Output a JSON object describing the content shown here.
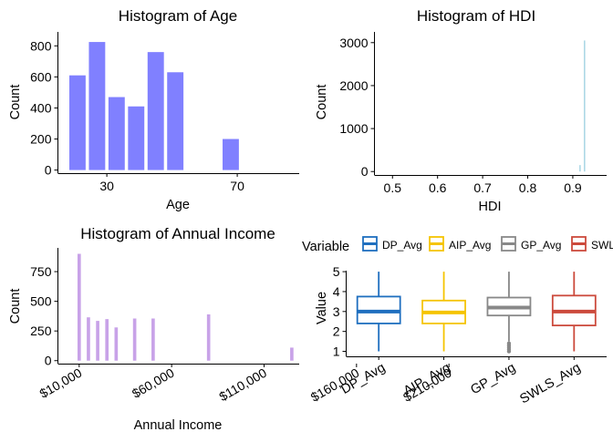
{
  "chart_data": [
    {
      "type": "bar",
      "title": "Histogram of Age",
      "xlabel": "Age",
      "ylabel": "Count",
      "x_ticks": [
        30,
        70
      ],
      "y_ticks": [
        0,
        200,
        400,
        600,
        800
      ],
      "xlim": [
        15,
        89
      ],
      "ylim": [
        -20,
        890
      ],
      "bin_width": 5,
      "bins": [
        {
          "x": 21,
          "count": 610
        },
        {
          "x": 27,
          "count": 825
        },
        {
          "x": 33,
          "count": 470
        },
        {
          "x": 39,
          "count": 410
        },
        {
          "x": 45,
          "count": 760
        },
        {
          "x": 51,
          "count": 630
        },
        {
          "x": 68,
          "count": 200
        }
      ],
      "color": "#8080ff"
    },
    {
      "type": "bar",
      "title": "Histogram of HDI",
      "xlabel": "HDI",
      "ylabel": "Count",
      "x_ticks": [
        "0.5",
        "0.6",
        "0.7",
        "0.8",
        "0.9"
      ],
      "y_ticks": [
        0,
        1000,
        2000,
        3000
      ],
      "xlim": [
        0.46,
        0.975
      ],
      "ylim": [
        -80,
        3250
      ],
      "bin_width": 0.0012,
      "bins": [
        {
          "x": 0.915,
          "count": 150
        },
        {
          "x": 0.925,
          "count": 3050
        }
      ],
      "color": "#add8e6"
    },
    {
      "type": "bar",
      "title": "Histogram of Annual Income",
      "xlabel": "Annual Income",
      "ylabel": "Count",
      "x_ticks": [
        "$10,000",
        "$60,000",
        "$110,000",
        "$160,000",
        "$210,000"
      ],
      "x_tick_values": [
        10000,
        60000,
        110000,
        160000,
        210000
      ],
      "y_ticks": [
        0,
        250,
        500,
        750
      ],
      "xlim": [
        -1500,
        129000
      ],
      "ylim": [
        -25,
        950
      ],
      "bin_width": 1800,
      "bins": [
        {
          "x": 10000,
          "count": 900
        },
        {
          "x": 15000,
          "count": 365
        },
        {
          "x": 20000,
          "count": 335
        },
        {
          "x": 25000,
          "count": 350
        },
        {
          "x": 30000,
          "count": 280
        },
        {
          "x": 40000,
          "count": 355
        },
        {
          "x": 50000,
          "count": 355
        },
        {
          "x": 80000,
          "count": 390
        },
        {
          "x": 125000,
          "count": 110
        }
      ],
      "color": "#c8a2e8"
    },
    {
      "type": "boxplot",
      "xlabel": "",
      "ylabel": "Value",
      "legend_title": "Variable",
      "legend_position": "top",
      "categories": [
        "DP_Avg",
        "AIP_Avg",
        "GP_Avg",
        "SWLS_Avg"
      ],
      "y_ticks": [
        1,
        2,
        3,
        4,
        5
      ],
      "ylim": [
        0.75,
        5.05
      ],
      "series": [
        {
          "name": "DP_Avg",
          "min": 1,
          "q1": 2.4,
          "median": 3.0,
          "q3": 3.75,
          "max": 5,
          "color": "#1f6fbf"
        },
        {
          "name": "AIP_Avg",
          "min": 1,
          "q1": 2.4,
          "median": 2.95,
          "q3": 3.55,
          "max": 5,
          "color": "#f5c400"
        },
        {
          "name": "GP_Avg",
          "min": 1.5,
          "q1": 2.8,
          "median": 3.2,
          "q3": 3.7,
          "max": 5,
          "color": "#888888",
          "outliers": [
            1.0,
            1.1,
            1.2,
            1.3,
            1.4
          ]
        },
        {
          "name": "SWLS_Avg",
          "min": 1,
          "q1": 2.3,
          "median": 3.0,
          "q3": 3.8,
          "max": 5,
          "color": "#cc4a3c"
        }
      ]
    }
  ]
}
